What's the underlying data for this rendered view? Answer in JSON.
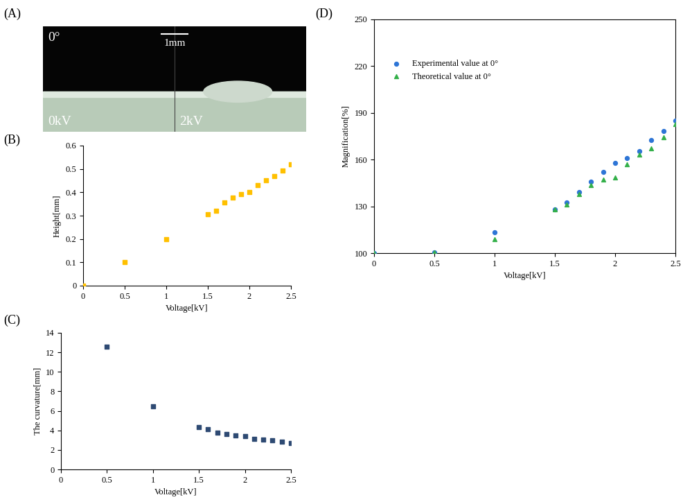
{
  "chart_data": [
    {
      "type": "scatter",
      "panel_label": "(B)",
      "x_label": "Voltage[kV]",
      "y_label": "Height[mm]",
      "x": [
        0,
        0.5,
        1,
        1.5,
        1.6,
        1.7,
        1.8,
        1.9,
        2,
        2.1,
        2.2,
        2.3,
        2.4,
        2.5
      ],
      "series": [
        {
          "name": "Height",
          "color": "#ffc000",
          "marker": "square",
          "values": [
            0,
            0.1,
            0.2,
            0.305,
            0.322,
            0.355,
            0.378,
            0.392,
            0.4,
            0.43,
            0.452,
            0.468,
            0.493,
            0.52
          ]
        }
      ],
      "xlim": [
        0,
        2.5
      ],
      "xticks": [
        0,
        0.5,
        1,
        1.5,
        2,
        2.5
      ],
      "ylim": [
        0,
        0.6
      ],
      "yticks": [
        0,
        0.1,
        0.2,
        0.3,
        0.4,
        0.5,
        0.6
      ],
      "grid": false
    },
    {
      "type": "scatter",
      "panel_label": "(C)",
      "x_label": "Voltage[kV]",
      "y_label": "The curvature[mm]",
      "x": [
        0.5,
        1,
        1.5,
        1.6,
        1.7,
        1.8,
        1.9,
        2,
        2.1,
        2.2,
        2.3,
        2.4,
        2.5
      ],
      "series": [
        {
          "name": "Curvature",
          "color": "#2e4a73",
          "marker": "square",
          "values": [
            12.6,
            6.5,
            4.3,
            4.1,
            3.75,
            3.6,
            3.45,
            3.4,
            3.15,
            3.05,
            2.95,
            2.85,
            2.7
          ]
        }
      ],
      "xlim": [
        0,
        2.5
      ],
      "xticks": [
        0,
        0.5,
        1,
        1.5,
        2,
        2.5
      ],
      "ylim": [
        0,
        14
      ],
      "yticks": [
        0,
        2,
        4,
        6,
        8,
        10,
        12,
        14
      ],
      "grid": false
    },
    {
      "type": "scatter",
      "panel_label": "(D)",
      "x_label": "Voltage[kV]",
      "y_label": "Magnification[%]",
      "x": [
        0,
        0.5,
        1,
        1.5,
        1.6,
        1.7,
        1.8,
        1.9,
        2,
        2.1,
        2.2,
        2.3,
        2.4,
        2.5
      ],
      "series": [
        {
          "name": "Experimental value at 0°",
          "color": "#2e75d6",
          "marker": "circle",
          "values": [
            100,
            100.5,
            113.5,
            128,
            132.5,
            139,
            146,
            152,
            158,
            161,
            165.5,
            172.5,
            178.5,
            185
          ]
        },
        {
          "name": "Theoretical value at 0°",
          "color": "#34b04a",
          "marker": "triangle",
          "values": [
            100,
            100.3,
            109,
            128,
            131,
            138,
            143.5,
            147,
            148.5,
            157,
            163,
            167,
            174.5,
            183
          ]
        }
      ],
      "xlim": [
        0,
        2.5
      ],
      "xticks": [
        0,
        0.5,
        1,
        1.5,
        2,
        2.5
      ],
      "ylim": [
        100,
        250
      ],
      "yticks": [
        100,
        130,
        160,
        190,
        220,
        250
      ],
      "grid": false,
      "legend": "upper left"
    }
  ],
  "image_panel": {
    "panel_label": "(A)",
    "angle": "0°",
    "scale": "1mm",
    "left_voltage": "0kV",
    "right_voltage": "2kV"
  }
}
